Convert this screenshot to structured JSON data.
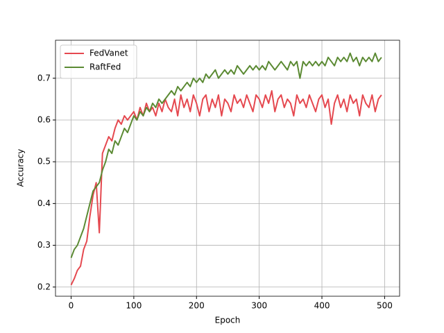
{
  "chart_data": {
    "type": "line",
    "x_label": "Epoch",
    "y_label": "Accuracy",
    "x": [
      0,
      5,
      10,
      15,
      20,
      25,
      30,
      35,
      40,
      45,
      50,
      55,
      60,
      65,
      70,
      75,
      80,
      85,
      90,
      95,
      100,
      105,
      110,
      115,
      120,
      125,
      130,
      135,
      140,
      145,
      150,
      155,
      160,
      165,
      170,
      175,
      180,
      185,
      190,
      195,
      200,
      205,
      210,
      215,
      220,
      225,
      230,
      235,
      240,
      245,
      250,
      255,
      260,
      265,
      270,
      275,
      280,
      285,
      290,
      295,
      300,
      305,
      310,
      315,
      320,
      325,
      330,
      335,
      340,
      345,
      350,
      355,
      360,
      365,
      370,
      375,
      380,
      385,
      390,
      395,
      400,
      405,
      410,
      415,
      420,
      425,
      430,
      435,
      440,
      445,
      450,
      455,
      460,
      465,
      470,
      475,
      480,
      485,
      490,
      495
    ],
    "series": [
      {
        "name": "FedVanet",
        "color": "#e5484f",
        "values": [
          0.205,
          0.22,
          0.24,
          0.25,
          0.29,
          0.31,
          0.37,
          0.42,
          0.45,
          0.33,
          0.52,
          0.54,
          0.56,
          0.55,
          0.58,
          0.6,
          0.59,
          0.61,
          0.6,
          0.61,
          0.62,
          0.6,
          0.63,
          0.61,
          0.64,
          0.62,
          0.63,
          0.61,
          0.64,
          0.62,
          0.65,
          0.63,
          0.62,
          0.65,
          0.61,
          0.66,
          0.63,
          0.65,
          0.62,
          0.66,
          0.64,
          0.61,
          0.65,
          0.66,
          0.62,
          0.65,
          0.63,
          0.66,
          0.61,
          0.65,
          0.64,
          0.62,
          0.66,
          0.64,
          0.65,
          0.63,
          0.66,
          0.64,
          0.62,
          0.66,
          0.65,
          0.63,
          0.66,
          0.64,
          0.67,
          0.62,
          0.65,
          0.66,
          0.63,
          0.65,
          0.64,
          0.61,
          0.66,
          0.64,
          0.65,
          0.63,
          0.66,
          0.64,
          0.62,
          0.65,
          0.66,
          0.63,
          0.65,
          0.59,
          0.64,
          0.66,
          0.63,
          0.65,
          0.62,
          0.66,
          0.64,
          0.65,
          0.61,
          0.66,
          0.64,
          0.63,
          0.66,
          0.62,
          0.65,
          0.66
        ]
      },
      {
        "name": "RaftFed",
        "color": "#5b8a33",
        "values": [
          0.27,
          0.29,
          0.3,
          0.32,
          0.34,
          0.37,
          0.4,
          0.43,
          0.44,
          0.45,
          0.48,
          0.5,
          0.53,
          0.52,
          0.55,
          0.54,
          0.56,
          0.58,
          0.57,
          0.59,
          0.61,
          0.6,
          0.62,
          0.61,
          0.63,
          0.62,
          0.64,
          0.63,
          0.65,
          0.64,
          0.65,
          0.66,
          0.67,
          0.66,
          0.68,
          0.67,
          0.68,
          0.69,
          0.68,
          0.7,
          0.69,
          0.7,
          0.69,
          0.71,
          0.7,
          0.71,
          0.72,
          0.7,
          0.71,
          0.72,
          0.71,
          0.72,
          0.71,
          0.73,
          0.72,
          0.71,
          0.72,
          0.73,
          0.72,
          0.73,
          0.72,
          0.73,
          0.72,
          0.74,
          0.73,
          0.72,
          0.73,
          0.74,
          0.73,
          0.72,
          0.74,
          0.73,
          0.74,
          0.7,
          0.74,
          0.73,
          0.74,
          0.73,
          0.74,
          0.73,
          0.74,
          0.73,
          0.75,
          0.74,
          0.73,
          0.75,
          0.74,
          0.75,
          0.74,
          0.76,
          0.74,
          0.75,
          0.73,
          0.75,
          0.74,
          0.75,
          0.74,
          0.76,
          0.74,
          0.75
        ]
      }
    ],
    "xlim": [
      -24.9,
      523.9
    ],
    "ylim": [
      0.178,
      0.791
    ],
    "xticks": [
      0,
      100,
      200,
      300,
      400,
      500
    ],
    "yticks": [
      0.2,
      0.3,
      0.4,
      0.5,
      0.6,
      0.7
    ],
    "grid": true,
    "legend": "upper-left"
  }
}
